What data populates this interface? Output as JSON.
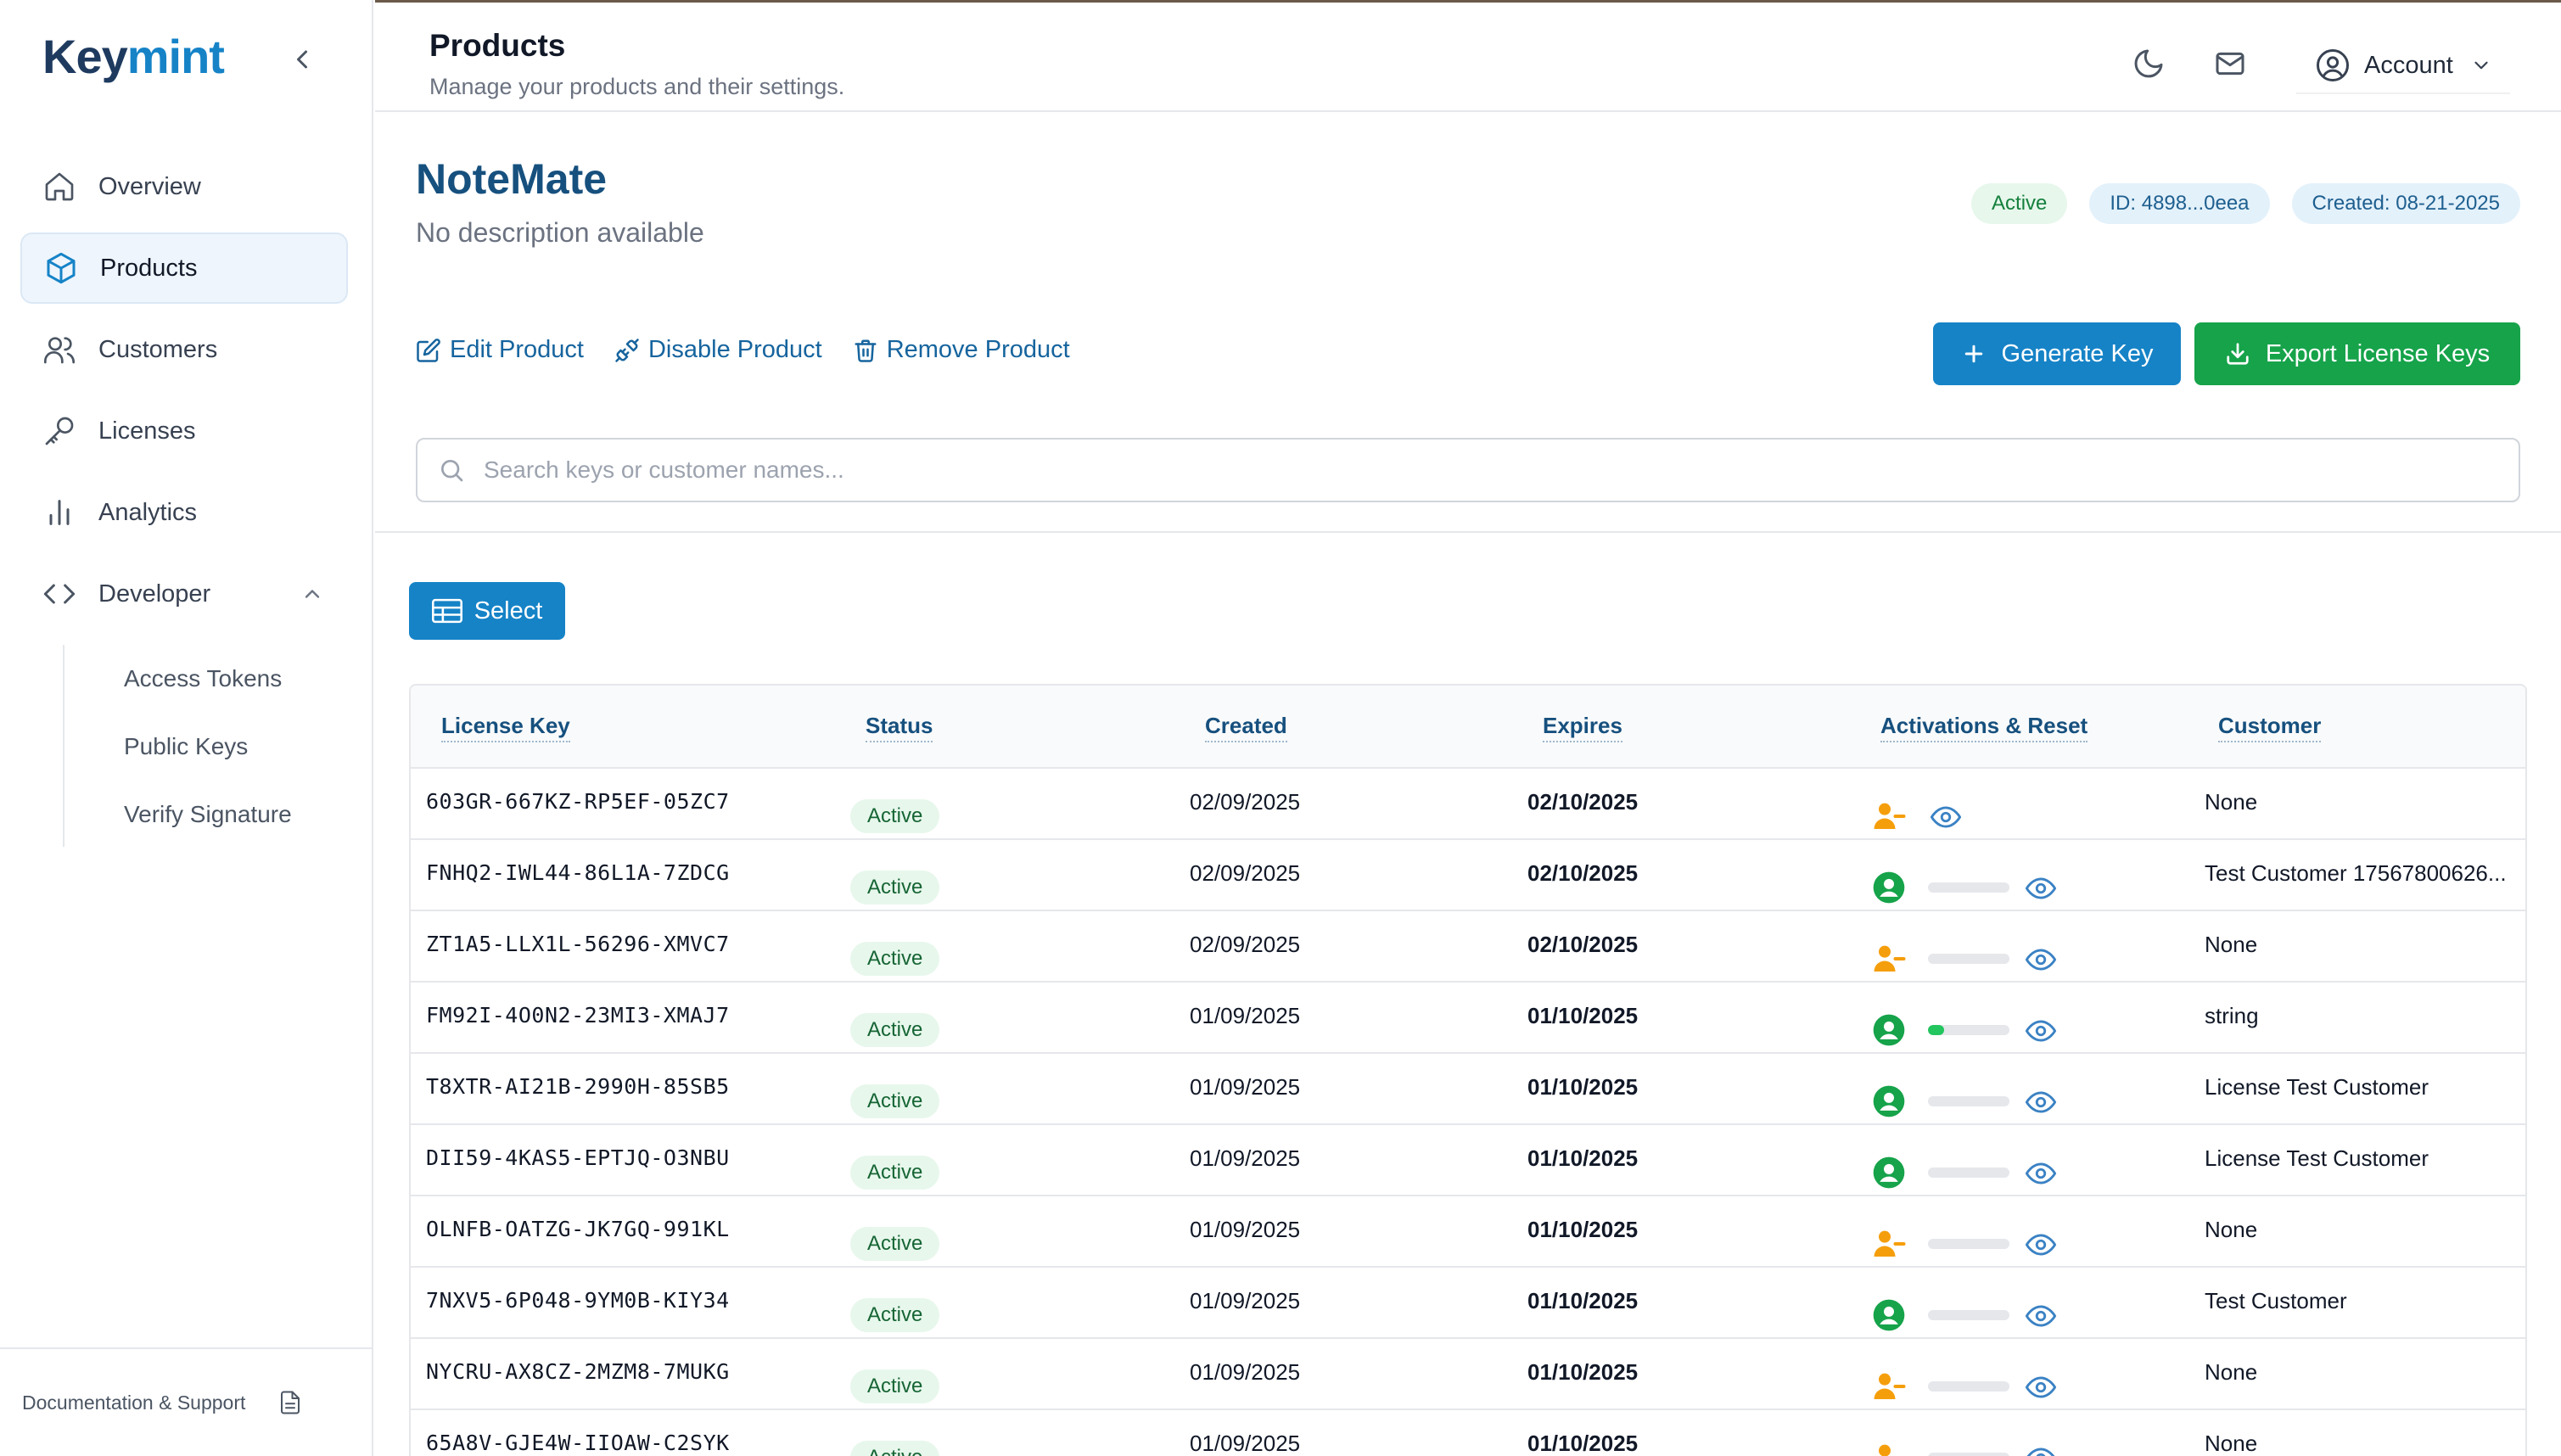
{
  "sidebar": {
    "logo_part1": "Key",
    "logo_part2": "mint",
    "nav": [
      {
        "label": "Overview"
      },
      {
        "label": "Products"
      },
      {
        "label": "Customers"
      },
      {
        "label": "Licenses"
      },
      {
        "label": "Analytics"
      },
      {
        "label": "Developer"
      }
    ],
    "developer_sub": [
      "Access Tokens",
      "Public Keys",
      "Verify Signature"
    ],
    "footer_label": "Documentation & Support"
  },
  "header": {
    "title": "Products",
    "subtitle": "Manage your products and their settings.",
    "account_label": "Account"
  },
  "product": {
    "name": "NoteMate",
    "description": "No description available",
    "status": "Active",
    "id_badge": "ID: 4898...0eea",
    "created_badge": "Created: 08-21-2025",
    "edit_label": "Edit Product",
    "disable_label": "Disable Product",
    "remove_label": "Remove Product",
    "generate_label": "Generate Key",
    "export_label": "Export License Keys"
  },
  "search": {
    "placeholder": "Search keys or customer names..."
  },
  "select_label": "Select",
  "table": {
    "headers": [
      "License Key",
      "Status",
      "Created",
      "Expires",
      "Activations & Reset",
      "Customer"
    ],
    "rows": [
      {
        "key": "603GR-667KZ-RP5EF-05ZC7",
        "status": "Active",
        "created": "02/09/2025",
        "expires": "02/10/2025",
        "customer_state": "unassigned",
        "show_bar": false,
        "activation_level": 0,
        "customer": "None"
      },
      {
        "key": "FNHQ2-IWL44-86L1A-7ZDCG",
        "status": "Active",
        "created": "02/09/2025",
        "expires": "02/10/2025",
        "customer_state": "assigned",
        "show_bar": true,
        "activation_level": 0,
        "customer": "Test Customer 17567800626..."
      },
      {
        "key": "ZT1A5-LLX1L-56296-XMVC7",
        "status": "Active",
        "created": "02/09/2025",
        "expires": "02/10/2025",
        "customer_state": "unassigned",
        "show_bar": true,
        "activation_level": 0,
        "customer": "None"
      },
      {
        "key": "FM92I-4O0N2-23MI3-XMAJ7",
        "status": "Active",
        "created": "01/09/2025",
        "expires": "01/10/2025",
        "customer_state": "assigned",
        "show_bar": true,
        "activation_level": 0.2,
        "customer": "string"
      },
      {
        "key": "T8XTR-AI21B-2990H-85SB5",
        "status": "Active",
        "created": "01/09/2025",
        "expires": "01/10/2025",
        "customer_state": "assigned",
        "show_bar": true,
        "activation_level": 0,
        "customer": "License Test Customer"
      },
      {
        "key": "DII59-4KAS5-EPTJQ-O3NBU",
        "status": "Active",
        "created": "01/09/2025",
        "expires": "01/10/2025",
        "customer_state": "assigned",
        "show_bar": true,
        "activation_level": 0,
        "customer": "License Test Customer"
      },
      {
        "key": "OLNFB-OATZG-JK7GQ-991KL",
        "status": "Active",
        "created": "01/09/2025",
        "expires": "01/10/2025",
        "customer_state": "unassigned",
        "show_bar": true,
        "activation_level": 0,
        "customer": "None"
      },
      {
        "key": "7NXV5-6P048-9YM0B-KIY34",
        "status": "Active",
        "created": "01/09/2025",
        "expires": "01/10/2025",
        "customer_state": "assigned",
        "show_bar": true,
        "activation_level": 0,
        "customer": "Test Customer"
      },
      {
        "key": "NYCRU-AX8CZ-2MZM8-7MUKG",
        "status": "Active",
        "created": "01/09/2025",
        "expires": "01/10/2025",
        "customer_state": "unassigned",
        "show_bar": true,
        "activation_level": 0,
        "customer": "None"
      },
      {
        "key": "65A8V-GJE4W-IIOAW-C2SYK",
        "status": "Active",
        "created": "01/09/2025",
        "expires": "01/10/2025",
        "customer_state": "unassigned",
        "show_bar": true,
        "activation_level": 0,
        "customer": "None"
      }
    ]
  },
  "colors": {
    "accent": "#1683c7",
    "export": "#16a34a",
    "assigned_icon": "#16a34a",
    "unassigned_icon": "#f59e0b"
  }
}
